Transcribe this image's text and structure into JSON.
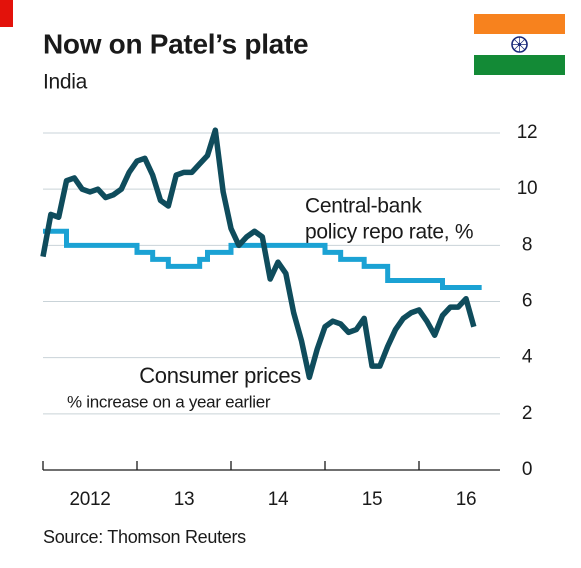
{
  "chart_data": {
    "type": "line",
    "title": "Now on Patel’s plate",
    "subtitle": "India",
    "source": "Source: Thomson Reuters",
    "annotations": {
      "repo": [
        "Central-bank",
        "policy repo rate, %"
      ],
      "cpi": [
        "Consumer prices",
        "% increase on a year earlier"
      ]
    },
    "xlim": [
      2012,
      2017
    ],
    "xticks": [
      {
        "value": 2012.5,
        "label": "2012"
      },
      {
        "value": 2013.5,
        "label": "13"
      },
      {
        "value": 2014.5,
        "label": "14"
      },
      {
        "value": 2015.5,
        "label": "15"
      },
      {
        "value": 2016.5,
        "label": "16"
      }
    ],
    "xtick_marks": [
      2012,
      2013,
      2014,
      2015,
      2016
    ],
    "ylim": [
      0,
      12
    ],
    "yticks": [
      0,
      2,
      4,
      6,
      8,
      10,
      12
    ],
    "grid": true,
    "x": [
      2012,
      2012.0833,
      2012.1667,
      2012.25,
      2012.3333,
      2012.4167,
      2012.5,
      2012.5833,
      2012.6667,
      2012.75,
      2012.8333,
      2012.9167,
      2013,
      2013.0833,
      2013.1667,
      2013.25,
      2013.3333,
      2013.4167,
      2013.5,
      2013.5833,
      2013.6667,
      2013.75,
      2013.8333,
      2013.9167,
      2014,
      2014.0833,
      2014.1667,
      2014.25,
      2014.3333,
      2014.4167,
      2014.5,
      2014.5833,
      2014.6667,
      2014.75,
      2014.8333,
      2014.9167,
      2015,
      2015.0833,
      2015.1667,
      2015.25,
      2015.3333,
      2015.4167,
      2015.5,
      2015.5833,
      2015.6667,
      2015.75,
      2015.8333,
      2015.9167,
      2016,
      2016.0833,
      2016.1667,
      2016.25,
      2016.3333,
      2016.4167,
      2016.5,
      2016.5833
    ],
    "series": [
      {
        "name": "Central-bank policy repo rate",
        "color": "#1ba2d4",
        "step": true,
        "values": [
          8.5,
          8.5,
          8.5,
          8,
          8,
          8,
          8,
          8,
          8,
          8,
          8,
          8,
          7.75,
          7.75,
          7.5,
          7.5,
          7.25,
          7.25,
          7.25,
          7.25,
          7.5,
          7.75,
          7.75,
          7.75,
          8,
          8,
          8,
          8,
          8,
          8,
          8,
          8,
          8,
          8,
          8,
          8,
          7.75,
          7.75,
          7.5,
          7.5,
          7.5,
          7.25,
          7.25,
          7.25,
          6.75,
          6.75,
          6.75,
          6.75,
          6.75,
          6.75,
          6.75,
          6.5,
          6.5,
          6.5,
          6.5,
          6.5
        ]
      },
      {
        "name": "Consumer prices",
        "color": "#0f4c5c",
        "step": false,
        "values": [
          7.6,
          9.1,
          9.0,
          10.3,
          10.4,
          10.0,
          9.9,
          10.0,
          9.7,
          9.8,
          10.0,
          10.6,
          11.0,
          11.1,
          10.5,
          9.6,
          9.4,
          10.5,
          10.6,
          10.6,
          10.9,
          11.2,
          12.1,
          9.9,
          8.6,
          8.0,
          8.3,
          8.5,
          8.3,
          6.8,
          7.4,
          7.0,
          5.6,
          4.6,
          3.3,
          4.3,
          5.1,
          5.3,
          5.2,
          4.9,
          5.0,
          5.4,
          3.7,
          3.7,
          4.4,
          5.0,
          5.4,
          5.6,
          5.7,
          5.3,
          4.8,
          5.5,
          5.8,
          5.8,
          6.1,
          5.1
        ]
      }
    ]
  }
}
